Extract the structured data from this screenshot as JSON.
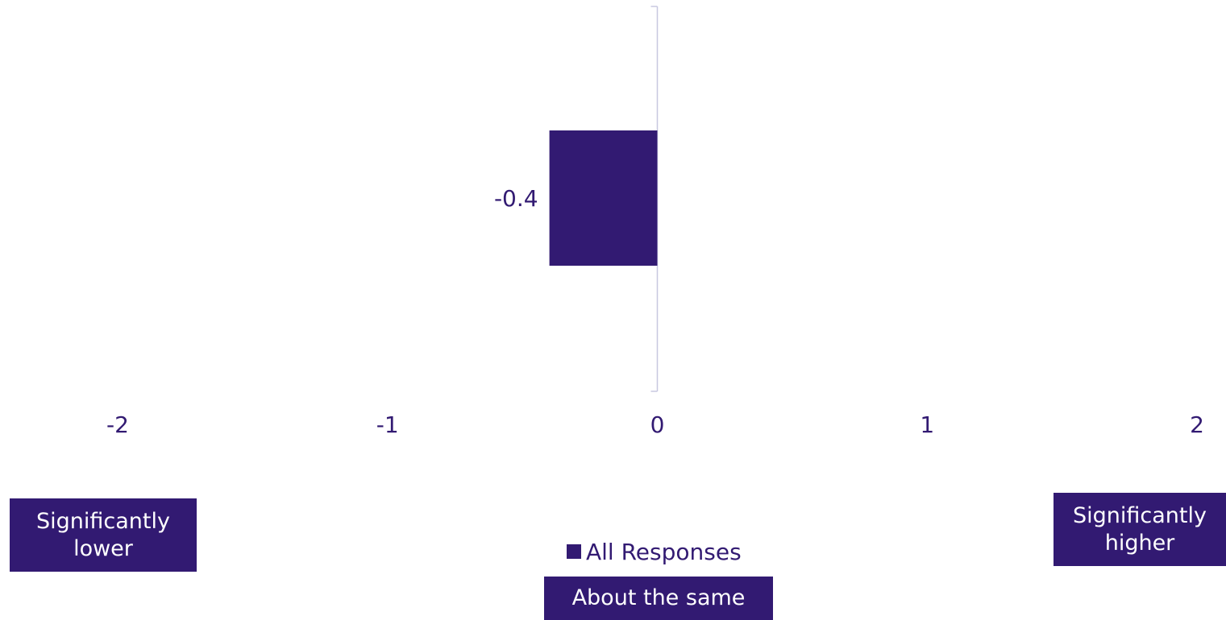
{
  "chart_data": {
    "type": "bar",
    "orientation": "horizontal",
    "categories": [
      ""
    ],
    "series": [
      {
        "name": "All Responses",
        "values": [
          -0.4
        ],
        "color": "#321a72"
      }
    ],
    "data_labels": [
      "-0.4"
    ],
    "xlim": [
      -2,
      2
    ],
    "xticks": [
      -2,
      -1,
      0,
      1,
      2
    ],
    "xtick_labels": [
      "-2",
      "-1",
      "0",
      "1",
      "2"
    ],
    "title": "",
    "xlabel": "",
    "ylabel": "",
    "grid": false,
    "legend_position": "bottom"
  },
  "scale_anchors": {
    "lower": "Significantly lower",
    "lower_line1": "Significantly",
    "lower_line2": "lower",
    "higher": "Significantly higher",
    "higher_line1": "Significantly",
    "higher_line2": "higher",
    "middle": "About the same"
  },
  "legend": {
    "label": "All Responses"
  },
  "colors": {
    "accent": "#321a72",
    "axis_line": "#c8c8e0",
    "background": "#ffffff"
  }
}
